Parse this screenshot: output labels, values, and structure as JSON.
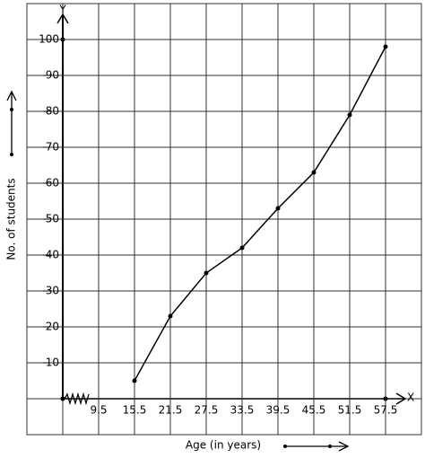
{
  "chart_data": {
    "type": "line",
    "x_axis_name": "X",
    "y_axis_name": "Y",
    "xlabel": "Age (in years)",
    "ylabel": "No. of students",
    "x": [
      15.5,
      21.5,
      27.5,
      33.5,
      39.5,
      45.5,
      51.5,
      57.5
    ],
    "series": [
      {
        "color": "#000000",
        "values": [
          5,
          23,
          35,
          42,
          53,
          63,
          79,
          98
        ]
      }
    ],
    "xlim": [
      3.5,
      63.5
    ],
    "ylim": [
      0,
      110
    ],
    "xticks": [
      9.5,
      15.5,
      21.5,
      27.5,
      33.5,
      39.5,
      45.5,
      51.5,
      57.5
    ],
    "yticks": [
      10,
      20,
      30,
      40,
      50,
      60,
      70,
      80,
      90,
      100
    ],
    "grid": true
  }
}
